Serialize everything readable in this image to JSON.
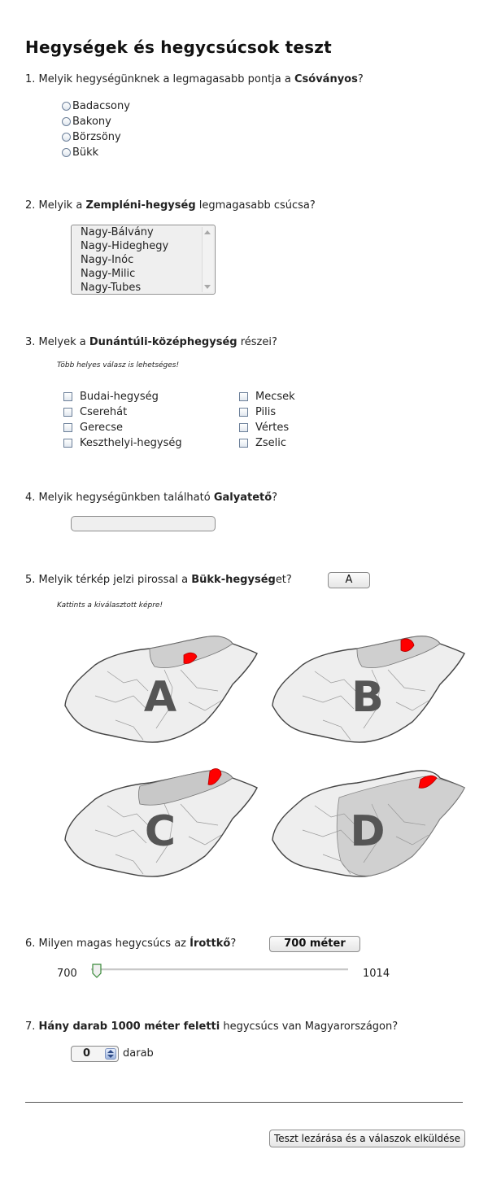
{
  "title": "Hegységek és hegycsúcsok teszt",
  "q1": {
    "number": "1. ",
    "pre": "Melyik hegységünknek a legmagasabb pontja a ",
    "bold": "Csóványos",
    "post": "?",
    "options": [
      "Badacsony",
      "Bakony",
      "Börzsöny",
      "Bükk"
    ]
  },
  "q2": {
    "number": "2. ",
    "pre": "Melyik a ",
    "bold": "Zempléni-hegység",
    "post": " legmagasabb csúcsa?",
    "options": [
      "Nagy-Bálvány",
      "Nagy-Hideghegy",
      "Nagy-Inóc",
      "Nagy-Milic",
      "Nagy-Tubes"
    ]
  },
  "q3": {
    "number": "3. ",
    "pre": "Melyek a ",
    "bold": "Dunántúli-középhegység",
    "post": " részei?",
    "hint": "Több helyes válasz is lehetséges!",
    "left_options": [
      "Budai-hegység",
      "Cserehát",
      "Gerecse",
      "Keszthelyi-hegység"
    ],
    "right_options": [
      "Mecsek",
      "Pilis",
      "Vértes",
      "Zselic"
    ]
  },
  "q4": {
    "number": "4. ",
    "pre": "Melyik hegységünkben található ",
    "bold": "Galyatető",
    "post": "?",
    "value": ""
  },
  "q5": {
    "number": "5. ",
    "pre": "Melyik térkép jelzi pirossal a ",
    "bold": "Bükk-hegység",
    "post": "et?",
    "answer": "A",
    "hint": "Kattints a kiválasztott képre!",
    "maps": [
      "A",
      "B",
      "C",
      "D"
    ]
  },
  "q6": {
    "number": "6. ",
    "pre": "Milyen magas hegycsúcs az ",
    "bold": "Írottkő",
    "post": "?",
    "answer": "700 méter",
    "min": "700",
    "max": "1014",
    "value": 700
  },
  "q7": {
    "number": "7. ",
    "bold": "Hány darab 1000 méter feletti",
    "post": " hegycsúcs van Magyarországon?",
    "value": "0",
    "unit": "darab"
  },
  "submit_label": "Teszt lezárása és a válaszok elküldése",
  "colors": {
    "highlight": "#ff0000",
    "map_fill": "#eeeeee",
    "map_dark": "#c8c8c8",
    "letter": "#555555"
  }
}
